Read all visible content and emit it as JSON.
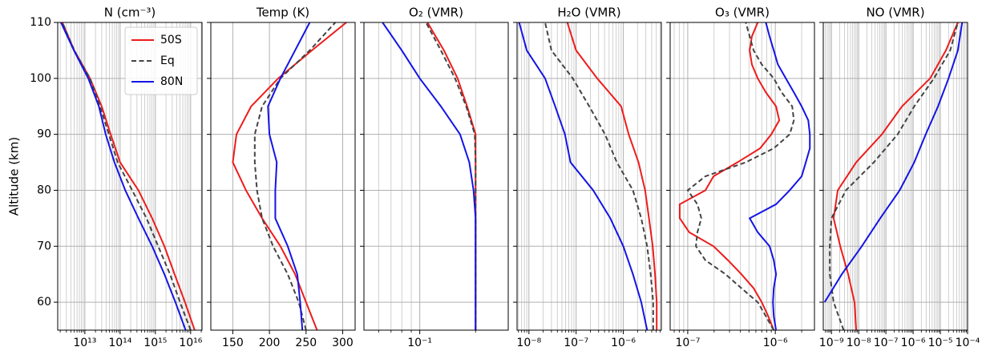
{
  "chart_data": [
    {
      "type": "line",
      "title": "N (cm⁻³)",
      "ylabel": "Altitude (km)",
      "xscale": "log",
      "grid": true,
      "minor_grid": true,
      "legend": "upper right",
      "xlim": [
        1700000000000.0,
        2.1e+16
      ],
      "xticks": [
        {
          "value": 10000000000000.0,
          "label": "10¹³"
        },
        {
          "value": 100000000000000.0,
          "label": "10¹⁴"
        },
        {
          "value": 1000000000000000.0,
          "label": "10¹⁵"
        },
        {
          "value": 1e+16,
          "label": "10¹⁶"
        }
      ],
      "ylim": [
        55,
        110
      ],
      "yticks": [
        60,
        70,
        80,
        90,
        100,
        110
      ],
      "y": [
        55,
        60,
        65,
        70,
        75,
        80,
        85,
        90,
        95,
        100,
        105,
        110
      ],
      "series": [
        {
          "name": "50S",
          "color": "#ee1c1c",
          "linestyle": "solid",
          "values": [
            1.3e+16,
            6900000000000000.0,
            3500000000000000.0,
            1800000000000000.0,
            810000000000000.0,
            330000000000000.0,
            100000000000000.0,
            54000000000000.0,
            30000000000000.0,
            14000000000000.0,
            5000000000000.0,
            2300000000000.0
          ]
        },
        {
          "name": "Eq",
          "color": "#444444",
          "linestyle": "dashed",
          "values": [
            1e+16,
            5000000000000000.0,
            2600000000000000.0,
            1200000000000000.0,
            560000000000000.0,
            220000000000000.0,
            85000000000000.0,
            48000000000000.0,
            27000000000000.0,
            14000000000000.0,
            5000000000000.0,
            2300000000000.0
          ]
        },
        {
          "name": "80N",
          "color": "#1414e6",
          "linestyle": "solid",
          "values": [
            7200000000000000.0,
            3700000000000000.0,
            1800000000000000.0,
            810000000000000.0,
            330000000000000.0,
            140000000000000.0,
            69000000000000.0,
            39000000000000.0,
            25000000000000.0,
            12500000000000.0,
            4900000000000.0,
            2100000000000.0
          ]
        }
      ]
    },
    {
      "type": "line",
      "title": "Temp (K)",
      "xscale": "linear",
      "grid": true,
      "sharey": true,
      "xlim": [
        120,
        317
      ],
      "xticks": [
        150,
        200,
        250,
        300
      ],
      "ylim": [
        55,
        110
      ],
      "yticks": [
        60,
        70,
        80,
        90,
        100,
        110
      ],
      "y": [
        55,
        60,
        65,
        70,
        75,
        80,
        85,
        90,
        95,
        100,
        105,
        110
      ],
      "series": [
        {
          "color": "#ee1c1c",
          "linestyle": "solid",
          "values": [
            265,
            250,
            235,
            215,
            190,
            168,
            150,
            155,
            175,
            212,
            258,
            305
          ]
        },
        {
          "color": "#444444",
          "linestyle": "dashed",
          "values": [
            250,
            240,
            225,
            205,
            190,
            183,
            180,
            180,
            190,
            215,
            255,
            290
          ]
        },
        {
          "color": "#1414e6",
          "linestyle": "solid",
          "values": [
            245,
            242,
            238,
            225,
            208,
            208,
            210,
            200,
            198,
            215,
            235,
            255
          ]
        }
      ]
    },
    {
      "type": "line",
      "title": "O₂ (VMR)",
      "xscale": "log",
      "grid": true,
      "minor_grid": true,
      "sharey": true,
      "xlim": [
        0.05,
        0.3
      ],
      "xticks": [
        {
          "value": 0.1,
          "label": "10⁻¹"
        }
      ],
      "ylim": [
        55,
        110
      ],
      "yticks": [
        60,
        70,
        80,
        90,
        100,
        110
      ],
      "y": [
        55,
        60,
        65,
        70,
        75,
        80,
        85,
        90,
        95,
        100,
        105,
        110
      ],
      "series": [
        {
          "color": "#ee1c1c",
          "linestyle": "solid",
          "values": [
            0.2,
            0.2,
            0.2,
            0.2,
            0.2,
            0.2,
            0.2,
            0.2,
            0.18,
            0.16,
            0.135,
            0.11
          ]
        },
        {
          "color": "#444444",
          "linestyle": "dashed",
          "values": [
            0.2,
            0.2,
            0.2,
            0.2,
            0.2,
            0.2,
            0.2,
            0.198,
            0.178,
            0.155,
            0.13,
            0.108
          ]
        },
        {
          "color": "#1414e6",
          "linestyle": "solid",
          "values": [
            0.2,
            0.2,
            0.2,
            0.2,
            0.2,
            0.195,
            0.185,
            0.165,
            0.13,
            0.1,
            0.08,
            0.063
          ]
        }
      ]
    },
    {
      "type": "line",
      "title": "H₂O (VMR)",
      "xscale": "log",
      "grid": true,
      "minor_grid": true,
      "sharey": true,
      "xlim": [
        5.6e-09,
        6.4e-06
      ],
      "xticks": [
        {
          "value": 1e-08,
          "label": "10⁻⁸"
        },
        {
          "value": 1e-07,
          "label": "10⁻⁷"
        },
        {
          "value": 1e-06,
          "label": "10⁻⁶"
        }
      ],
      "ylim": [
        55,
        110
      ],
      "yticks": [
        60,
        70,
        80,
        90,
        100,
        110
      ],
      "y": [
        55,
        60,
        65,
        70,
        75,
        80,
        85,
        90,
        95,
        100,
        105,
        110
      ],
      "series": [
        {
          "color": "#ee1c1c",
          "linestyle": "solid",
          "values": [
            5.1e-06,
            5.1e-06,
            4.7e-06,
            4.2e-06,
            3.5e-06,
            2.9e-06,
            2.1e-06,
            1.3e-06,
            9e-07,
            2.8e-07,
            1e-07,
            6.5e-08
          ]
        },
        {
          "color": "#444444",
          "linestyle": "dashed",
          "values": [
            4.3e-06,
            4.3e-06,
            3.8e-06,
            3.2e-06,
            2.4e-06,
            1.6e-06,
            7.3e-07,
            4.1e-07,
            1.9e-07,
            8.5e-08,
            3e-08,
            2.2e-08
          ]
        },
        {
          "color": "#1414e6",
          "linestyle": "solid",
          "values": [
            3.2e-06,
            2.4e-06,
            1.6e-06,
            1e-06,
            5.3e-07,
            2.3e-07,
            7.6e-08,
            5.8e-08,
            3.6e-08,
            2.2e-08,
            9e-09,
            6.2e-09
          ]
        }
      ]
    },
    {
      "type": "line",
      "title": "O₃ (VMR)",
      "xscale": "log",
      "grid": true,
      "minor_grid": true,
      "sharey": true,
      "xlim": [
        6.3e-08,
        2.8e-06
      ],
      "xticks": [
        {
          "value": 1e-07,
          "label": "10⁻⁷"
        },
        {
          "value": 1e-06,
          "label": "10⁻⁶"
        }
      ],
      "ylim": [
        55,
        110
      ],
      "yticks": [
        60,
        70,
        80,
        90,
        100,
        110
      ],
      "y": [
        55,
        57.5,
        60,
        62.5,
        65,
        67.5,
        70,
        72.5,
        75,
        77.5,
        80,
        82.5,
        85,
        87.5,
        90,
        92.5,
        95,
        97.5,
        100,
        102.5,
        105,
        107.5,
        110
      ],
      "series": [
        {
          "color": "#ee1c1c",
          "linestyle": "solid",
          "values": [
            9.6e-07,
            8.3e-07,
            7e-07,
            5.65e-07,
            4.1e-07,
            2.88e-07,
            1.97e-07,
            1.04e-07,
            8.1e-08,
            8.1e-08,
            1.59e-07,
            1.97e-07,
            3.7e-07,
            6.7e-07,
            9e-07,
            1.11e-06,
            1.02e-06,
            7.8e-07,
            6.3e-07,
            5.4e-07,
            5.1e-07,
            5.4e-07,
            6.3e-07
          ]
        },
        {
          "color": "#444444",
          "linestyle": "dashed",
          "values": [
            9.6e-07,
            7.8e-07,
            6.3e-07,
            4.1e-07,
            2.7e-07,
            1.59e-07,
            1.24e-07,
            1.29e-07,
            1.43e-07,
            1.29e-07,
            1e-07,
            1.59e-07,
            4.6e-07,
            9.6e-07,
            1.46e-06,
            1.63e-06,
            1.56e-06,
            1.18e-06,
            9.6e-07,
            7e-07,
            5.65e-07,
            5.1e-07,
            4.6e-07
          ]
        },
        {
          "color": "#1414e6",
          "linestyle": "solid",
          "values": [
            1.02e-06,
            9.6e-07,
            9.4e-07,
            9.6e-07,
            1.02e-06,
            9.6e-07,
            8.6e-07,
            6.3e-07,
            5.1e-07,
            1.02e-06,
            1.46e-06,
            2e-06,
            2.23e-06,
            2.48e-06,
            2.48e-06,
            2.38e-06,
            2e-06,
            1.63e-06,
            1.32e-06,
            1.07e-06,
            9.6e-07,
            8.6e-07,
            7.8e-07
          ]
        }
      ]
    },
    {
      "type": "line",
      "title": "NO (VMR)",
      "xscale": "log",
      "grid": true,
      "minor_grid": true,
      "sharey": true,
      "xlim": [
        5e-10,
        0.0001
      ],
      "xticks": [
        {
          "value": 1e-09,
          "label": "10⁻⁹"
        },
        {
          "value": 1e-08,
          "label": "10⁻⁸"
        },
        {
          "value": 1e-07,
          "label": "10⁻⁷"
        },
        {
          "value": 1e-06,
          "label": "10⁻⁶"
        },
        {
          "value": 1e-05,
          "label": "10⁻⁵"
        },
        {
          "value": 0.0001,
          "label": "10⁻⁴"
        }
      ],
      "ylim": [
        55,
        110
      ],
      "yticks": [
        60,
        70,
        80,
        90,
        100,
        110
      ],
      "y": [
        55,
        60,
        65,
        70,
        75,
        80,
        85,
        90,
        95,
        100,
        105,
        110
      ],
      "series": [
        {
          "color": "#ee1c1c",
          "linestyle": "solid",
          "values": [
            8.1e-09,
            7e-09,
            4.1e-09,
            2.1e-09,
            1.2e-09,
            1.7e-09,
            8.1e-09,
            7.1e-08,
            3.9e-07,
            4.2e-06,
            1.6e-05,
            4.4e-05
          ]
        },
        {
          "color": "#444444",
          "linestyle": "dashed",
          "values": [
            2.8e-09,
            1.2e-09,
            8.7e-10,
            8.7e-10,
            1e-09,
            3.4e-09,
            3.6e-08,
            2.7e-07,
            1.1e-06,
            5.8e-06,
            2.3e-05,
            4.4e-05
          ]
        },
        {
          "color": "#1414e6",
          "linestyle": "solid",
          "values": [
            null,
            5.6e-10,
            2.4e-09,
            1.3e-08,
            6.2e-08,
            3.2e-07,
            1.1e-06,
            2.9e-06,
            8.2e-06,
            2e-05,
            4.4e-05,
            6.3e-05
          ]
        }
      ]
    }
  ]
}
